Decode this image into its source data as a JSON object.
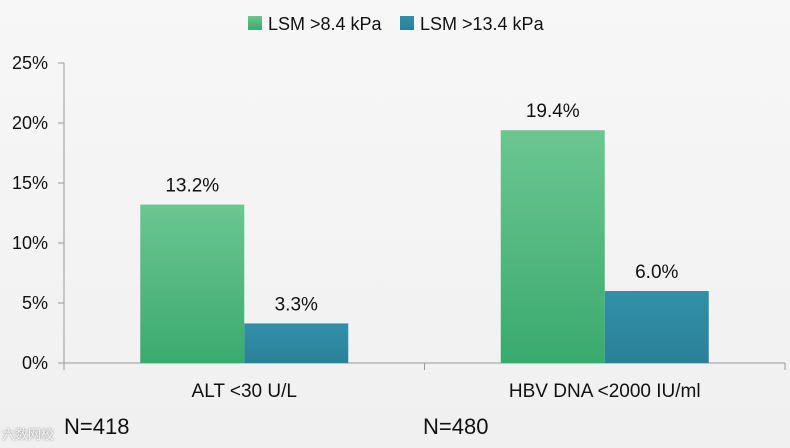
{
  "chart_data": {
    "type": "bar",
    "categories": [
      "ALT <30 U/L",
      "HBV DNA <2000 IU/ml"
    ],
    "series": [
      {
        "name": "LSM >8.4 kPa",
        "values": [
          13.2,
          19.4
        ],
        "labels": [
          "13.2%",
          "19.4%"
        ],
        "color": "#3cb878"
      },
      {
        "name": "LSM >13.4 kPa",
        "values": [
          3.3,
          6.0
        ],
        "labels": [
          "3.3%",
          "6.0%"
        ],
        "color": "#2e8aa3"
      }
    ],
    "ylim": [
      0,
      25
    ],
    "yticks": [
      "0%",
      "5%",
      "10%",
      "15%",
      "20%",
      "25%"
    ],
    "ytick_values": [
      0,
      5,
      10,
      15,
      20,
      25
    ],
    "legend_position": "top-center"
  },
  "sample_sizes": [
    "N=418",
    "N=480"
  ],
  "watermark": "六数网校"
}
